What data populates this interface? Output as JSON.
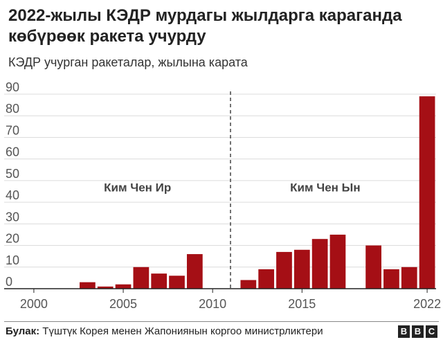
{
  "title": "2022-жылы КЭДР мурдагы жылдарга караганда көбүрөөк ракета учурду",
  "subtitle": "КЭДР учурган ракеталар, жылына карата",
  "source_label": "Булак:",
  "source_text": " Түштүк Корея менен Жапониянын коргоо министрликтери",
  "logo": [
    "B",
    "B",
    "C"
  ],
  "chart_data": {
    "type": "bar",
    "title": "2022-жылы КЭДР мурдагы жылдарга караганда көбүрөөк ракета учурду",
    "subtitle": "КЭДР учурган ракеталар, жылына карата",
    "xlabel": "",
    "ylabel": "",
    "ylim": [
      0,
      90
    ],
    "yticks": [
      0,
      10,
      20,
      30,
      40,
      50,
      60,
      70,
      80,
      90
    ],
    "xlim": [
      1999.5,
      2022.5
    ],
    "xticks": [
      {
        "value": 2000,
        "label": "2000"
      },
      {
        "value": 2005,
        "label": "2005"
      },
      {
        "value": 2010,
        "label": "2010"
      },
      {
        "value": 2015,
        "label": "2015"
      },
      {
        "value": 2022,
        "label": "2022"
      }
    ],
    "bar_color": "#a50f15",
    "grid": true,
    "x": [
      2003,
      2004,
      2005,
      2006,
      2007,
      2008,
      2009,
      2012,
      2013,
      2014,
      2015,
      2016,
      2017,
      2019,
      2020,
      2021,
      2022
    ],
    "values": [
      3,
      1,
      2,
      10,
      7,
      6,
      16,
      4,
      9,
      17,
      18,
      23,
      25,
      20,
      9,
      10,
      89
    ],
    "divider": {
      "x": 2011
    },
    "annotations": [
      {
        "text": "Ким Чен Ир",
        "x": 2005.8,
        "y": 45
      },
      {
        "text": "Ким Чен Ын",
        "x": 2016.3,
        "y": 45
      }
    ]
  }
}
